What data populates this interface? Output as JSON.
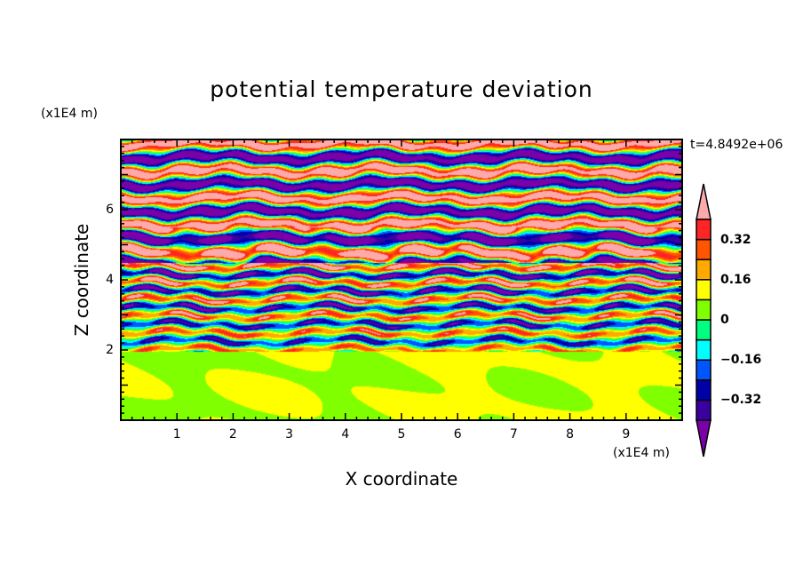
{
  "chart_data": {
    "type": "heatmap",
    "title": "potential temperature deviation",
    "xlabel": "X coordinate",
    "ylabel": "Z coordinate",
    "x_unit": "(x1E4 m)",
    "y_unit": "(x1E4 m)",
    "time_label": "t=4.8492e+06",
    "xlim": [
      0,
      10
    ],
    "ylim": [
      0,
      8
    ],
    "xticks": [
      "1",
      "2",
      "3",
      "4",
      "5",
      "6",
      "7",
      "8",
      "9"
    ],
    "yticks": [
      "2",
      "4",
      "6"
    ],
    "colorbar": {
      "levels": [
        -0.4,
        -0.32,
        -0.24,
        -0.16,
        -0.08,
        0,
        0.08,
        0.16,
        0.24,
        0.32,
        0.4
      ],
      "labels": [
        "0.32",
        "0.16",
        "0",
        "−0.16",
        "−0.32"
      ],
      "label_values": [
        0.32,
        0.16,
        0,
        -0.16,
        -0.32
      ],
      "colors": [
        "#7a00a8",
        "#3a00a0",
        "#0000a8",
        "#0055ff",
        "#00ffff",
        "#00ff80",
        "#80ff00",
        "#ffff00",
        "#ffaa00",
        "#ff5500",
        "#ff2525",
        "#ffaaaa"
      ],
      "extend": "both"
    },
    "description_regions": [
      {
        "z_range": [
          0,
          2
        ],
        "values_range": [
          0,
          0.08
        ]
      },
      {
        "z_range": [
          2,
          4.5
        ],
        "values_range": [
          -0.4,
          0.4
        ]
      },
      {
        "z_range": [
          4.5,
          8
        ],
        "values_range": [
          -0.4,
          0.4
        ]
      }
    ]
  }
}
